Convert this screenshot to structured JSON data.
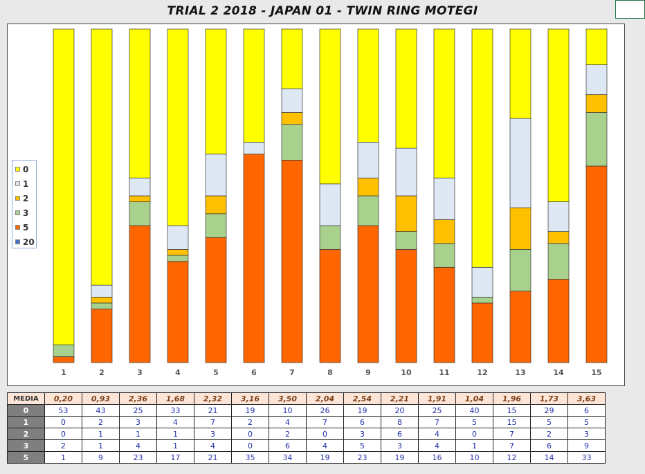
{
  "title": "TRIAL 2 2018 - JAPAN 01 - TWIN RING MOTEGI",
  "chart_data": {
    "type": "bar",
    "stacked": true,
    "normalized": true,
    "categories": [
      "1",
      "2",
      "3",
      "4",
      "5",
      "6",
      "7",
      "8",
      "9",
      "10",
      "11",
      "12",
      "13",
      "14",
      "15"
    ],
    "series": [
      {
        "name": "5",
        "color": "#ff6600",
        "values": [
          1,
          9,
          23,
          17,
          21,
          35,
          34,
          19,
          23,
          19,
          16,
          10,
          12,
          14,
          33
        ]
      },
      {
        "name": "3",
        "color": "#a9d18e",
        "values": [
          2,
          1,
          4,
          1,
          4,
          0,
          6,
          4,
          5,
          3,
          4,
          1,
          7,
          6,
          9
        ]
      },
      {
        "name": "2",
        "color": "#ffc000",
        "values": [
          0,
          1,
          1,
          1,
          3,
          0,
          2,
          0,
          3,
          6,
          4,
          0,
          7,
          2,
          3
        ]
      },
      {
        "name": "1",
        "color": "#dde8f4",
        "values": [
          0,
          2,
          3,
          4,
          7,
          2,
          4,
          7,
          6,
          8,
          7,
          5,
          15,
          5,
          5
        ]
      },
      {
        "name": "0",
        "color": "#ffff00",
        "values": [
          53,
          43,
          25,
          33,
          21,
          19,
          10,
          26,
          19,
          20,
          25,
          40,
          15,
          29,
          6
        ]
      }
    ],
    "legend": {
      "position": "left",
      "items": [
        {
          "label": "0",
          "color": "#ffff00"
        },
        {
          "label": "1",
          "color": "#dde8f4"
        },
        {
          "label": "2",
          "color": "#ffc000"
        },
        {
          "label": "3",
          "color": "#a9d18e"
        },
        {
          "label": "5",
          "color": "#ff6600"
        },
        {
          "label": "20",
          "color": "#4472c4"
        }
      ]
    }
  },
  "table": {
    "media_label": "MEDIA",
    "media": [
      "0,20",
      "0,93",
      "2,36",
      "1,68",
      "2,32",
      "3,16",
      "3,50",
      "2,04",
      "2,54",
      "2,21",
      "1,91",
      "1,04",
      "1,96",
      "1,73",
      "3,63"
    ],
    "rows": [
      {
        "label": "0",
        "values": [
          "53",
          "43",
          "25",
          "33",
          "21",
          "19",
          "10",
          "26",
          "19",
          "20",
          "25",
          "40",
          "15",
          "29",
          "6"
        ]
      },
      {
        "label": "1",
        "values": [
          "0",
          "2",
          "3",
          "4",
          "7",
          "2",
          "4",
          "7",
          "6",
          "8",
          "7",
          "5",
          "15",
          "5",
          "5"
        ]
      },
      {
        "label": "2",
        "values": [
          "0",
          "1",
          "1",
          "1",
          "3",
          "0",
          "2",
          "0",
          "3",
          "6",
          "4",
          "0",
          "7",
          "2",
          "3"
        ]
      },
      {
        "label": "3",
        "values": [
          "2",
          "1",
          "4",
          "1",
          "4",
          "0",
          "6",
          "4",
          "5",
          "3",
          "4",
          "1",
          "7",
          "6",
          "9"
        ]
      },
      {
        "label": "5",
        "values": [
          "1",
          "9",
          "23",
          "17",
          "21",
          "35",
          "34",
          "19",
          "23",
          "19",
          "16",
          "10",
          "12",
          "14",
          "33"
        ]
      }
    ]
  }
}
